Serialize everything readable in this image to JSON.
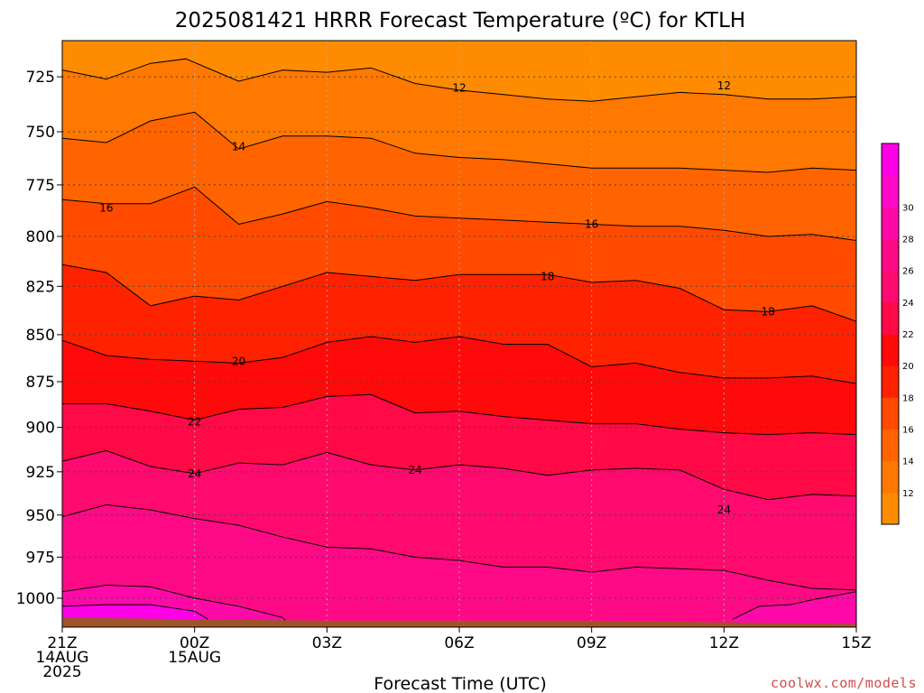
{
  "chart_data": {
    "type": "heatmap",
    "title": "2025081421 HRRR Forecast Temperature (ºC) for KTLH",
    "xlabel": "Forecast Time (UTC)",
    "credit": "coolwx.com/models",
    "xlim": [
      0,
      18
    ],
    "ylim": [
      1018,
      709
    ],
    "y_scale": "log-pressure",
    "grid": true,
    "x_ticks": [
      {
        "x": 0,
        "lines": [
          "21Z",
          "14AUG",
          "2025"
        ]
      },
      {
        "x": 3,
        "lines": [
          "00Z",
          "15AUG"
        ]
      },
      {
        "x": 6,
        "lines": [
          "03Z"
        ]
      },
      {
        "x": 9,
        "lines": [
          "06Z"
        ]
      },
      {
        "x": 12,
        "lines": [
          "09Z"
        ]
      },
      {
        "x": 15,
        "lines": [
          "12Z"
        ]
      },
      {
        "x": 18,
        "lines": [
          "15Z"
        ]
      }
    ],
    "y_ticks": [
      725,
      750,
      775,
      800,
      825,
      850,
      875,
      900,
      925,
      950,
      975,
      1000
    ],
    "colorbar": {
      "levels": [
        12,
        14,
        16,
        18,
        20,
        22,
        24,
        26,
        28,
        30
      ],
      "label_levels": [
        "12",
        "14",
        "16",
        "18",
        "20",
        "22",
        "24",
        "26",
        "28",
        "30"
      ],
      "colors": [
        "#ff8c00",
        "#ff7800",
        "#ff6400",
        "#ff4a00",
        "#ff2200",
        "#ff0a0a",
        "#ff0a46",
        "#ff0a6e",
        "#ff0a86",
        "#ff0aa8",
        "#ff0ac8",
        "#ff00e6"
      ]
    },
    "contour_labels": [
      {
        "text": "12",
        "x": 9.0,
        "p": 730
      },
      {
        "text": "12",
        "x": 15.0,
        "p": 729
      },
      {
        "text": "14",
        "x": 4.0,
        "p": 757
      },
      {
        "text": "16",
        "x": 1.0,
        "p": 786
      },
      {
        "text": "16",
        "x": 12.0,
        "p": 794
      },
      {
        "text": "18",
        "x": 11.0,
        "p": 820
      },
      {
        "text": "18",
        "x": 16.0,
        "p": 838
      },
      {
        "text": "20",
        "x": 4.0,
        "p": 864
      },
      {
        "text": "22",
        "x": 3.0,
        "p": 897
      },
      {
        "text": "24",
        "x": 3.0,
        "p": 926
      },
      {
        "text": "24",
        "x": 8.0,
        "p": 924
      },
      {
        "text": "24",
        "x": 15.0,
        "p": 947
      }
    ],
    "isotherms": [
      {
        "level": 12,
        "x": [
          0,
          1,
          2,
          2.8,
          4,
          5,
          6,
          7,
          8,
          9,
          10,
          11,
          12,
          13,
          14,
          15,
          16,
          17,
          18
        ],
        "p": [
          722,
          726,
          719,
          717,
          727,
          722,
          723,
          721,
          728,
          731,
          733,
          735,
          736,
          734,
          732,
          733,
          735,
          735,
          734
        ]
      },
      {
        "level": 14,
        "x": [
          0,
          1,
          2,
          3,
          4,
          5,
          6,
          7,
          8,
          9,
          10,
          11,
          12,
          13,
          14,
          15,
          16,
          17,
          18
        ],
        "p": [
          753,
          755,
          745,
          741,
          758,
          752,
          752,
          753,
          760,
          762,
          763,
          765,
          767,
          767,
          767,
          768,
          769,
          767,
          768
        ]
      },
      {
        "level": 16,
        "x": [
          0,
          1,
          2,
          3,
          4,
          5,
          6,
          7,
          8,
          9,
          10,
          11,
          12,
          13,
          14,
          15,
          16,
          17,
          18
        ],
        "p": [
          782,
          784,
          784,
          776,
          794,
          789,
          783,
          786,
          790,
          791,
          792,
          793,
          794,
          795,
          795,
          797,
          800,
          799,
          802
        ]
      },
      {
        "level": 18,
        "x": [
          0,
          1,
          2,
          3,
          4,
          5,
          6,
          7,
          8,
          9,
          10,
          11,
          12,
          13,
          14,
          15,
          16,
          17,
          18
        ],
        "p": [
          814,
          818,
          835,
          830,
          832,
          825,
          818,
          820,
          822,
          819,
          819,
          819,
          823,
          822,
          826,
          837,
          838,
          835,
          843
        ]
      },
      {
        "level": 20,
        "x": [
          0,
          1,
          2,
          3,
          4,
          5,
          6,
          7,
          8,
          9,
          10,
          11,
          12,
          13,
          14,
          15,
          16,
          17,
          18
        ],
        "p": [
          853,
          861,
          863,
          864,
          865,
          862,
          854,
          851,
          854,
          851,
          855,
          855,
          867,
          865,
          870,
          873,
          873,
          872,
          876
        ]
      },
      {
        "level": 22,
        "x": [
          0,
          1,
          2,
          3,
          4,
          5,
          6,
          7,
          8,
          9,
          10,
          11,
          12,
          13,
          14,
          15,
          16,
          17,
          18
        ],
        "p": [
          887,
          887,
          891,
          896,
          890,
          889,
          883,
          882,
          892,
          891,
          894,
          896,
          898,
          898,
          901,
          903,
          904,
          903,
          904
        ]
      },
      {
        "level": 24,
        "x": [
          0,
          1,
          2,
          3,
          4,
          5,
          6,
          7,
          8,
          9,
          10,
          11,
          12,
          13,
          14,
          15,
          16,
          17,
          18
        ],
        "p": [
          919,
          913,
          922,
          926,
          920,
          921,
          914,
          921,
          924,
          921,
          923,
          927,
          924,
          923,
          924,
          935,
          941,
          938,
          939
        ]
      },
      {
        "level": 26,
        "x": [
          0,
          1,
          2,
          3,
          4,
          5,
          6,
          7,
          8,
          9,
          10,
          11,
          12,
          13,
          14,
          15,
          16,
          17,
          18
        ],
        "p": [
          951,
          944,
          947,
          952,
          956,
          963,
          969,
          970,
          975,
          977,
          981,
          981,
          984,
          981,
          982,
          983,
          989,
          994,
          995
        ]
      }
    ],
    "surface_color": "#a0522d"
  }
}
